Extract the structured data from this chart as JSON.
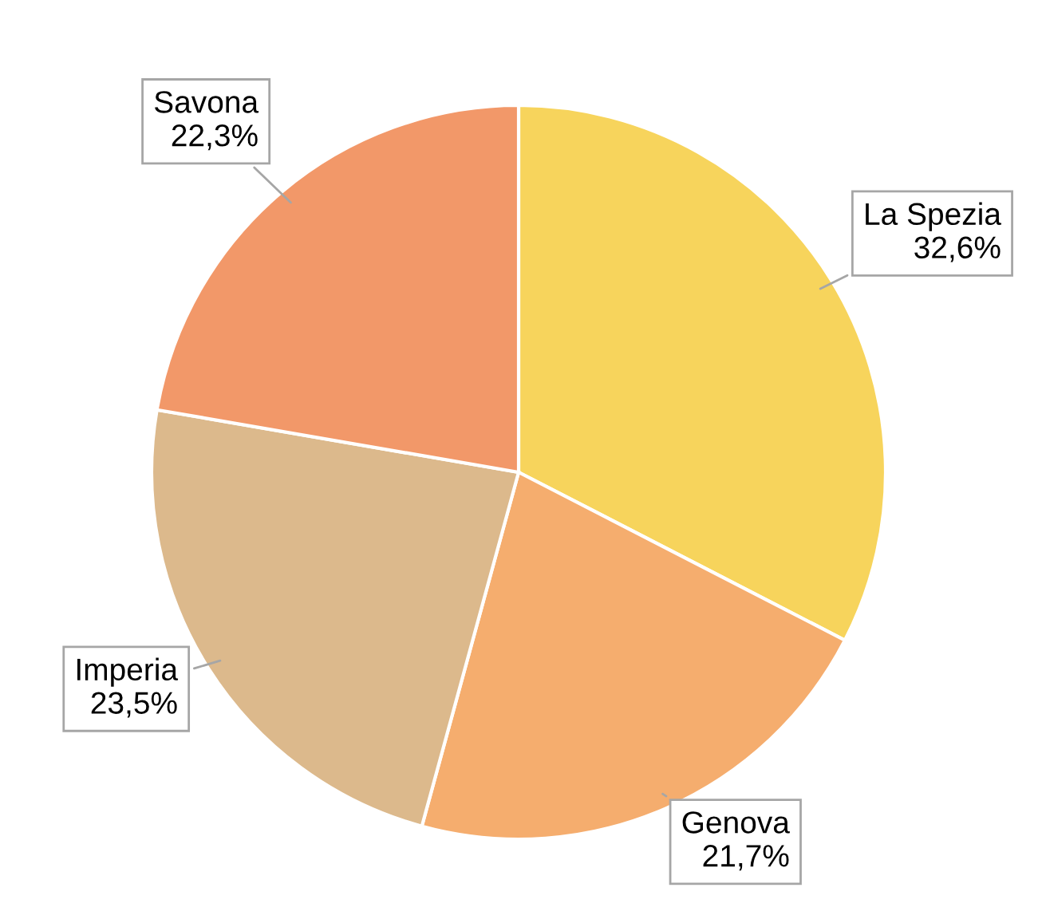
{
  "chart_data": {
    "type": "pie",
    "categories": [
      "La Spezia",
      "Genova",
      "Imperia",
      "Savona"
    ],
    "values": [
      32.6,
      21.7,
      23.5,
      22.3
    ],
    "value_labels": [
      "32,6%",
      "21,7%",
      "23,5%",
      "22,3%"
    ],
    "colors": [
      "#f7d45c",
      "#f5ad6e",
      "#dcb98c",
      "#f29869"
    ]
  }
}
